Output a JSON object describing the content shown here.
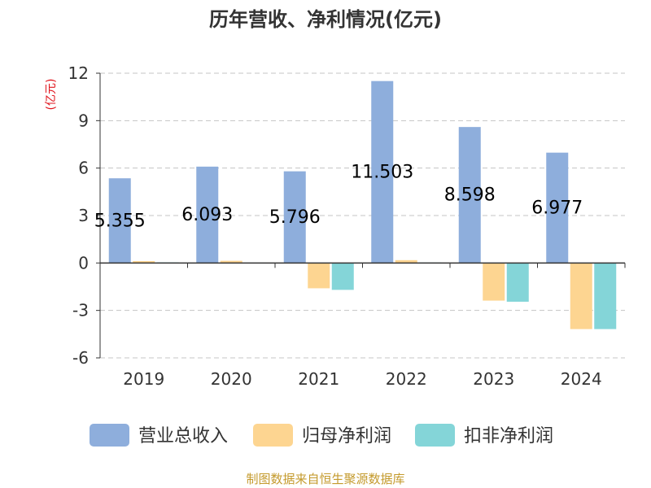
{
  "chart_data": {
    "type": "bar",
    "title": "历年营收、净利情况(亿元)",
    "ylabel": "(亿元)",
    "categories": [
      "2019",
      "2020",
      "2021",
      "2022",
      "2023",
      "2024"
    ],
    "ylim": [
      -6,
      12
    ],
    "yticks": [
      "12",
      "9",
      "6",
      "3",
      "0",
      "-3",
      "-6"
    ],
    "grid": true,
    "legend_position": "bottom",
    "series": [
      {
        "name": "营业总收入",
        "color": "#8eaedc",
        "values": [
          5.355,
          6.093,
          5.796,
          11.503,
          8.598,
          6.977
        ]
      },
      {
        "name": "归母净利润",
        "color": "#fdd591",
        "values": [
          0.12,
          0.14,
          -1.6,
          0.18,
          -2.38,
          -4.18
        ]
      },
      {
        "name": "扣非净利润",
        "color": "#84d5d8",
        "values": [
          0.04,
          0.02,
          -1.7,
          0.03,
          -2.45,
          -4.18
        ]
      }
    ],
    "data_labels": [
      "5.355",
      "6.093",
      "5.796",
      "11.503",
      "8.598",
      "6.977"
    ]
  },
  "source": "制图数据来自恒生聚源数据库"
}
